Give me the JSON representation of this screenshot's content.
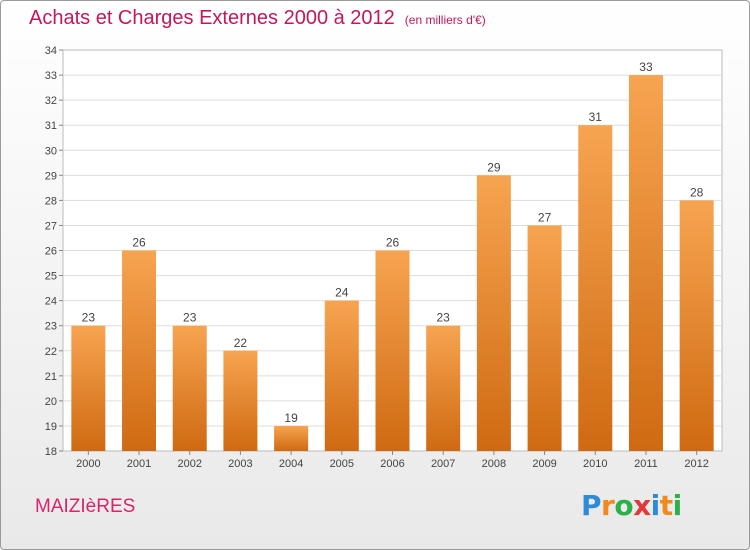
{
  "header": {
    "title": "Achats et Charges Externes 2000 à 2012",
    "unit": "(en milliers d'€)"
  },
  "location": "MAIZIèRES",
  "logo": {
    "text": "Proxiti",
    "letters": [
      {
        "char": "P",
        "color": "#2e8bd8"
      },
      {
        "char": "r",
        "color": "#f08a1c"
      },
      {
        "char": "o",
        "color": "#2bb04a"
      },
      {
        "char": "x",
        "color": "#e23a3a"
      },
      {
        "char": "i",
        "color": "#2e8bd8"
      },
      {
        "char": "t",
        "color": "#f08a1c"
      },
      {
        "char": "i",
        "color": "#2bb04a"
      }
    ]
  },
  "chart_data": {
    "type": "bar",
    "title": "Achats et Charges Externes 2000 à 2012",
    "subtitle": "(en milliers d'€)",
    "categories": [
      "2000",
      "2001",
      "2002",
      "2003",
      "2004",
      "2005",
      "2006",
      "2007",
      "2008",
      "2009",
      "2010",
      "2011",
      "2012"
    ],
    "values": [
      23,
      26,
      23,
      22,
      19,
      24,
      26,
      23,
      29,
      27,
      31,
      33,
      28
    ],
    "ylim": [
      18,
      34
    ],
    "yticks": [
      18,
      19,
      20,
      21,
      22,
      23,
      24,
      25,
      26,
      27,
      28,
      29,
      30,
      31,
      32,
      33,
      34
    ],
    "grid": true,
    "data_labels": true,
    "bar_color_top": "#f7a450",
    "bar_color_bottom": "#cf6a12"
  }
}
